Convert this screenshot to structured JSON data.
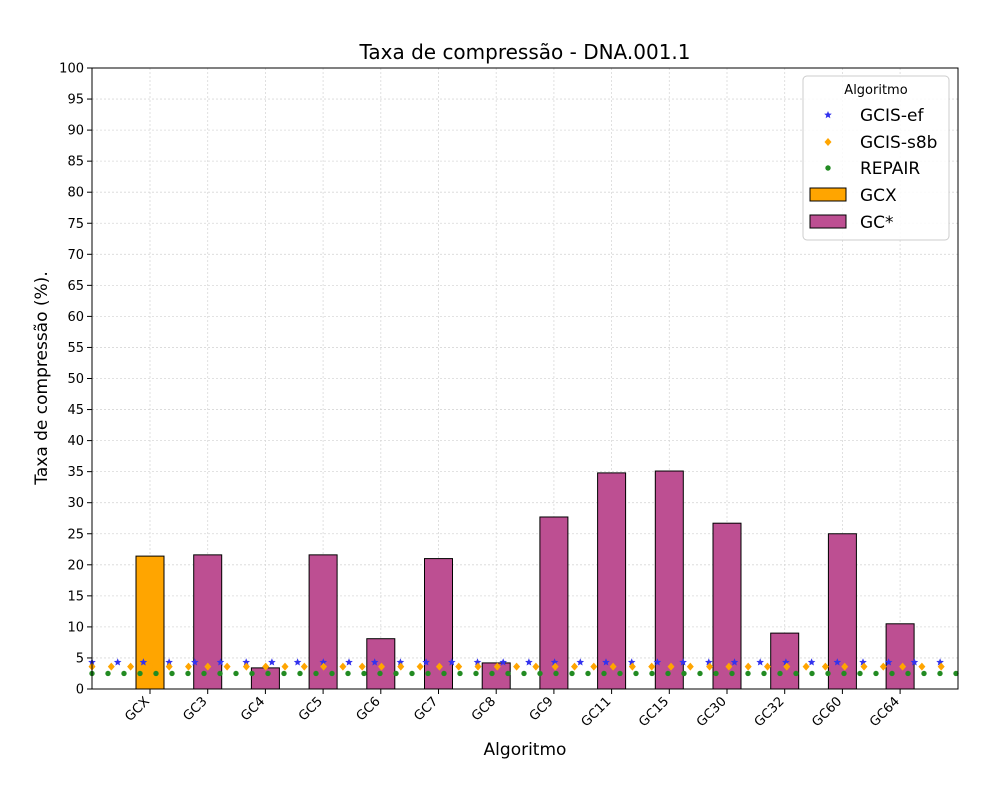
{
  "chart_data": {
    "type": "bar",
    "title": "Taxa de compressão -  DNA.001.1",
    "xlabel": "Algoritmo",
    "ylabel": "Taxa de compressão (%).",
    "ylim": [
      0,
      100
    ],
    "yticks": [
      0,
      5,
      10,
      15,
      20,
      25,
      30,
      35,
      40,
      45,
      50,
      55,
      60,
      65,
      70,
      75,
      80,
      85,
      90,
      95,
      100
    ],
    "grid": true,
    "categories": [
      "GCX",
      "GC3",
      "GC4",
      "GC5",
      "GC6",
      "GC7",
      "GC8",
      "GC9",
      "GC11",
      "GC15",
      "GC30",
      "GC32",
      "GC60",
      "GC64"
    ],
    "series": [
      {
        "name": "GCX",
        "color": "#FFA500",
        "values": [
          21.4,
          null,
          null,
          null,
          null,
          null,
          null,
          null,
          null,
          null,
          null,
          null,
          null,
          null
        ]
      },
      {
        "name": "GC*",
        "color": "#BD4F92",
        "values": [
          null,
          21.6,
          3.4,
          21.6,
          8.1,
          21.0,
          4.2,
          27.7,
          34.8,
          35.1,
          26.7,
          9.0,
          25.0,
          10.5
        ]
      }
    ],
    "reference_lines": [
      {
        "name": "GCIS-ef",
        "value": 4.3,
        "color": "#3333EE",
        "marker": "star"
      },
      {
        "name": "GCIS-s8b",
        "value": 3.6,
        "color": "#FFA500",
        "marker": "diamond"
      },
      {
        "name": "REPAIR",
        "value": 2.5,
        "color": "#228B22",
        "marker": "circle"
      }
    ],
    "legend": {
      "title": "Algoritmo",
      "position": "top-right",
      "entries": [
        "GCIS-ef",
        "GCIS-s8b",
        "REPAIR",
        "GCX",
        "GC*"
      ]
    }
  }
}
